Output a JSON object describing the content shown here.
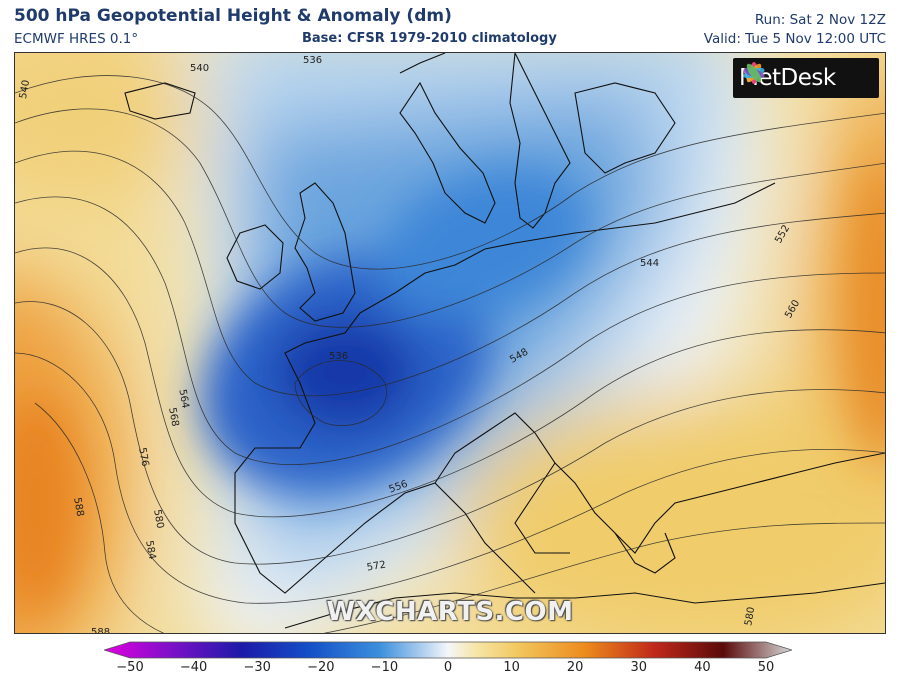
{
  "header": {
    "title": "500 hPa Geopotential Height & Anomaly (dm)",
    "model": "ECMWF HRES 0.1°",
    "base": "Base: CFSR 1979-2010 climatology",
    "run": "Run: Sat 2 Nov 12Z",
    "valid": "Valid: Tue 5 Nov 12:00 UTC"
  },
  "logo": {
    "text": "MetDesk",
    "icon": "metdesk-flower-icon"
  },
  "watermark": "WXCHARTS.COM",
  "contour_labels": [
    "540",
    "536",
    "540",
    "544",
    "552",
    "560",
    "548",
    "564",
    "568",
    "576",
    "588",
    "580",
    "584",
    "556",
    "572",
    "580",
    "588",
    "536"
  ],
  "colorbar": {
    "min": -50,
    "max": 50,
    "tick_labels": [
      "−50",
      "−40",
      "−30",
      "−20",
      "−10",
      "0",
      "10",
      "20",
      "30",
      "40",
      "50"
    ],
    "colors": {
      "n50": "#e000e0",
      "n40": "#7a10c8",
      "n30": "#1c1aa8",
      "n20": "#1450c8",
      "n10": "#3c8fdc",
      "n5": "#a8ccee",
      "zero": "#f4f6fa",
      "p5": "#f6e6a8",
      "p10": "#f2c860",
      "p20": "#ec8a1c",
      "p30": "#c0281a",
      "p40": "#5a0a0a",
      "p50": "#d8d8d8"
    }
  }
}
